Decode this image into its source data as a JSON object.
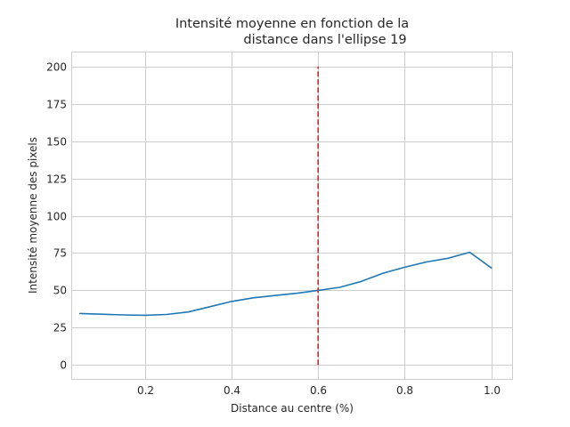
{
  "chart_data": {
    "type": "line",
    "title_lines": [
      "Intensité moyenne en fonction de la",
      "distance dans l'ellipse 19"
    ],
    "xlabel": "Distance au centre (%)",
    "ylabel": "Intensité moyenne des pixels",
    "xlim": [
      0.03,
      1.05
    ],
    "ylim": [
      -10,
      210
    ],
    "xticks": [
      0.2,
      0.4,
      0.6,
      0.8,
      1.0
    ],
    "xtick_labels": [
      "0.2",
      "0.4",
      "0.6",
      "0.8",
      "1.0"
    ],
    "yticks": [
      0,
      25,
      50,
      75,
      100,
      125,
      150,
      175,
      200
    ],
    "ytick_labels": [
      "0",
      "25",
      "50",
      "75",
      "100",
      "125",
      "150",
      "175",
      "200"
    ],
    "grid": true,
    "series": [
      {
        "color": "#1f77b4",
        "x": [
          0.05,
          0.1,
          0.15,
          0.2,
          0.25,
          0.3,
          0.35,
          0.4,
          0.45,
          0.5,
          0.55,
          0.6,
          0.65,
          0.7,
          0.75,
          0.8,
          0.85,
          0.9,
          0.95,
          1.0
        ],
        "y": [
          34.5,
          34,
          33.5,
          33.3,
          33.8,
          35.5,
          39,
          42.5,
          45,
          46.5,
          48,
          50,
          52,
          56,
          61.5,
          65.5,
          69,
          71.5,
          75.5,
          65
        ]
      }
    ],
    "vline": {
      "x": 0.6,
      "y_range": [
        0,
        200
      ],
      "color": "#d62728",
      "style": "dashed"
    }
  }
}
